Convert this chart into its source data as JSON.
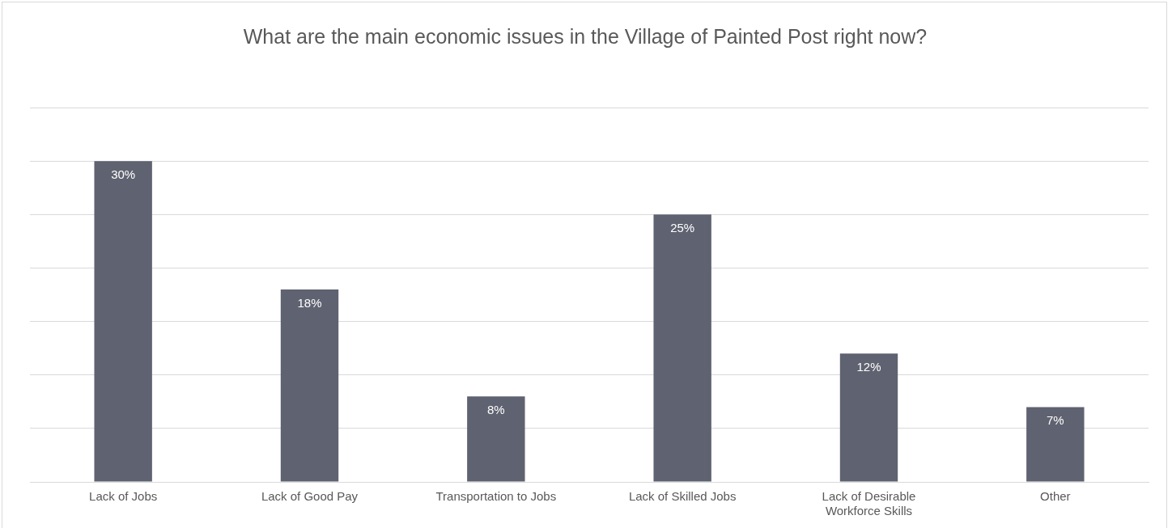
{
  "chart_data": {
    "type": "bar",
    "title": "What are the main economic issues in the Village of Painted Post right now?",
    "categories": [
      "Lack of Jobs",
      "Lack of Good Pay",
      "Transportation to Jobs",
      "Lack of Skilled Jobs",
      "Lack of Desirable Workforce Skills",
      "Other"
    ],
    "values": [
      30,
      18,
      8,
      25,
      12,
      7
    ],
    "value_labels": [
      "30%",
      "18%",
      "8%",
      "25%",
      "12%",
      "7%"
    ],
    "color": "#5f6270",
    "ylim": [
      0,
      35
    ],
    "yticks": [
      {
        "value": 0,
        "label": null
      },
      {
        "value": 5,
        "label": null
      },
      {
        "value": 10,
        "label": null
      },
      {
        "value": 15,
        "label": null
      },
      {
        "value": 20,
        "label": null
      },
      {
        "value": 25,
        "label": null
      },
      {
        "value": 30,
        "label": null
      },
      {
        "value": 35,
        "label": null
      }
    ],
    "grid": "y",
    "tick_labels": "x",
    "legend": false
  }
}
